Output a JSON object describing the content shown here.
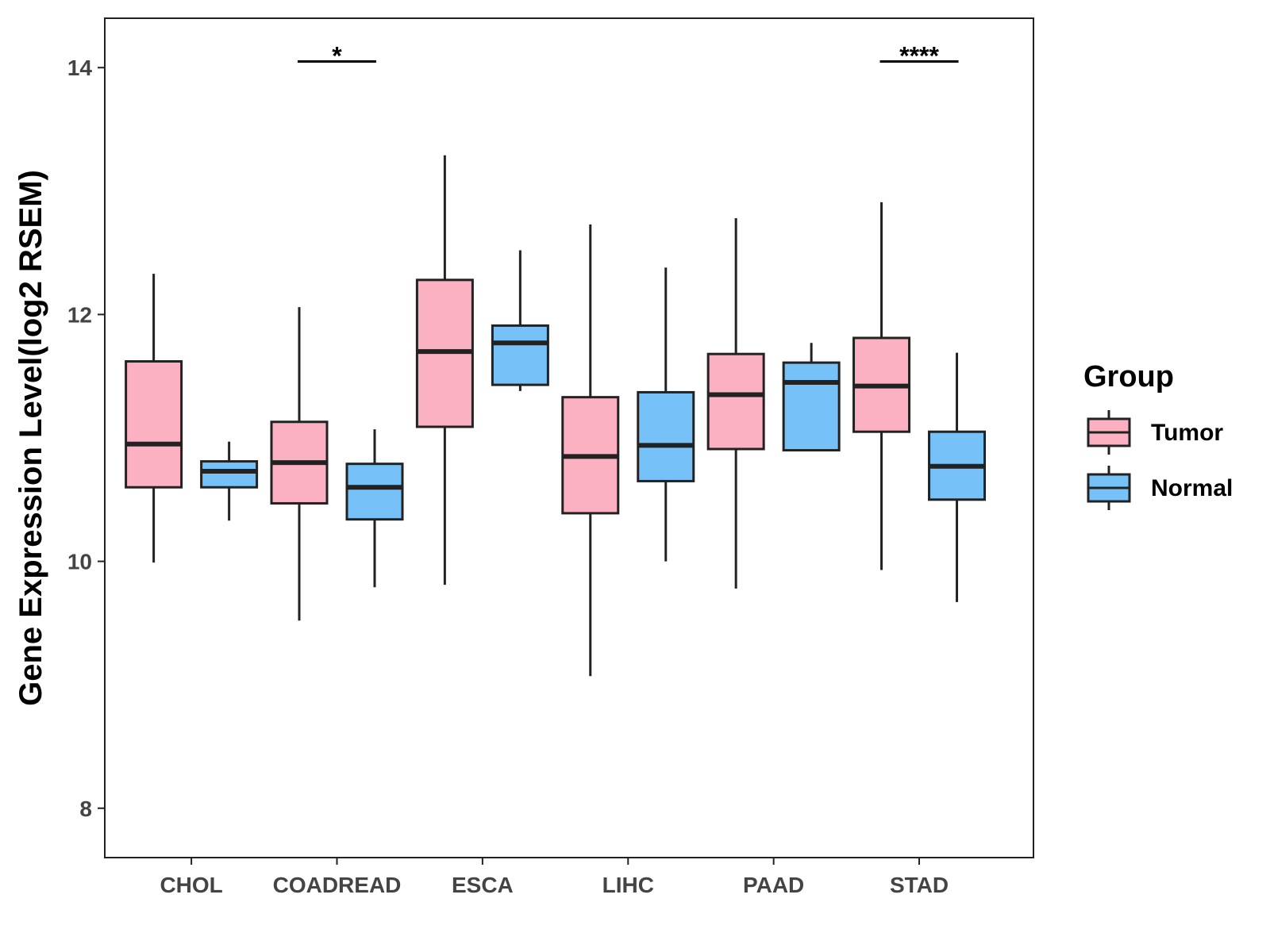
{
  "chart_data": {
    "type": "boxplot",
    "title": "",
    "xlabel": "",
    "ylabel": "Gene Expression Level(log2 RSEM)",
    "ylim": [
      7.6,
      14.4
    ],
    "yticks": [
      8,
      10,
      12,
      14
    ],
    "categories": [
      "CHOL",
      "COADREAD",
      "ESCA",
      "LIHC",
      "PAAD",
      "STAD"
    ],
    "legend": {
      "title": "Group",
      "position": "right"
    },
    "series": [
      {
        "name": "Tumor",
        "color": "#FBB1C2",
        "boxes": [
          {
            "min": 9.99,
            "q1": 10.6,
            "median": 10.95,
            "q3": 11.62,
            "max": 12.33
          },
          {
            "min": 9.52,
            "q1": 10.47,
            "median": 10.8,
            "q3": 11.13,
            "max": 12.06
          },
          {
            "min": 9.81,
            "q1": 11.09,
            "median": 11.7,
            "q3": 12.28,
            "max": 13.29
          },
          {
            "min": 9.07,
            "q1": 10.39,
            "median": 10.85,
            "q3": 11.33,
            "max": 12.73
          },
          {
            "min": 9.78,
            "q1": 10.91,
            "median": 11.35,
            "q3": 11.68,
            "max": 12.78
          },
          {
            "min": 9.93,
            "q1": 11.05,
            "median": 11.42,
            "q3": 11.81,
            "max": 12.91
          }
        ]
      },
      {
        "name": "Normal",
        "color": "#76C1F8",
        "boxes": [
          {
            "min": 10.33,
            "q1": 10.6,
            "median": 10.73,
            "q3": 10.81,
            "max": 10.97
          },
          {
            "min": 9.79,
            "q1": 10.34,
            "median": 10.6,
            "q3": 10.79,
            "max": 11.07
          },
          {
            "min": 11.38,
            "q1": 11.43,
            "median": 11.77,
            "q3": 11.91,
            "max": 12.52
          },
          {
            "min": 10.0,
            "q1": 10.65,
            "median": 10.94,
            "q3": 11.37,
            "max": 12.38
          },
          {
            "min": 10.9,
            "q1": 10.9,
            "median": 11.45,
            "q3": 11.61,
            "max": 11.77
          },
          {
            "min": 9.67,
            "q1": 10.5,
            "median": 10.77,
            "q3": 11.05,
            "max": 11.69
          }
        ]
      }
    ],
    "annotations": [
      {
        "category": "COADREAD",
        "label": "*",
        "y": 14.05
      },
      {
        "category": "STAD",
        "label": "****",
        "y": 14.05
      }
    ]
  }
}
